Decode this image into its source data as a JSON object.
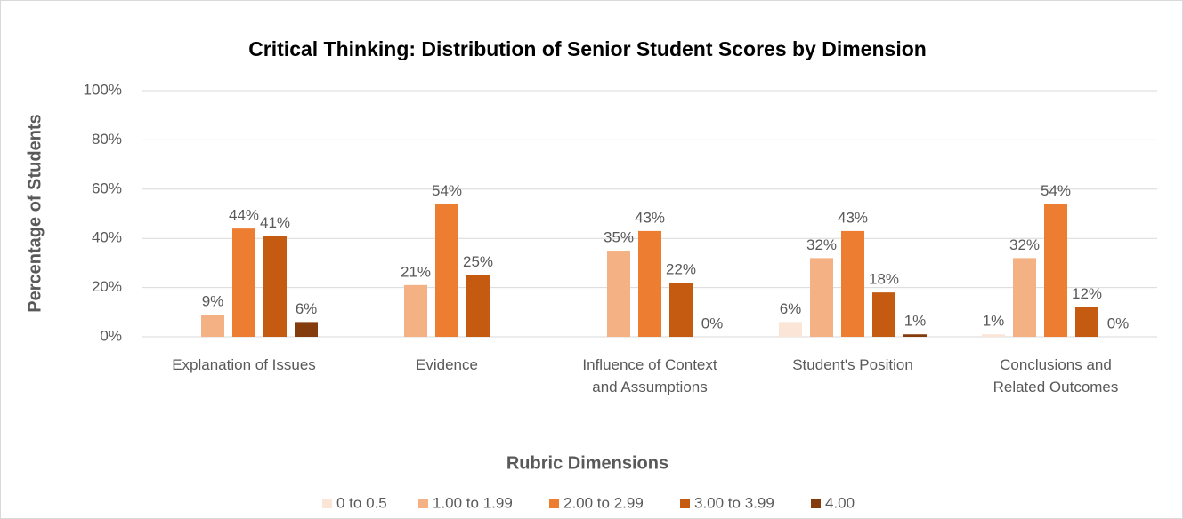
{
  "chart_data": {
    "type": "bar",
    "title": "Critical Thinking: Distribution of Senior Student Scores by Dimension",
    "x_label": "Rubric Dimensions",
    "y_label": "Percentage of Students",
    "categories": [
      "Explanation of Issues",
      "Evidence",
      "Influence of Context and Assumptions",
      "Student's Position",
      "Conclusions and Related Outcomes"
    ],
    "series": [
      {
        "name": "0 to 0.5",
        "color": "#fbe5d6",
        "values": [
          null,
          null,
          null,
          6,
          1
        ],
        "value_labels": [
          null,
          null,
          null,
          "6%",
          "1%"
        ]
      },
      {
        "name": "1.00 to 1.99",
        "color": "#f4b183",
        "values": [
          9,
          21,
          35,
          32,
          32
        ],
        "value_labels": [
          "9%",
          "21%",
          "35%",
          "32%",
          "32%"
        ]
      },
      {
        "name": "2.00 to 2.99",
        "color": "#ed7d31",
        "values": [
          44,
          54,
          43,
          43,
          54
        ],
        "value_labels": [
          "44%",
          "54%",
          "43%",
          "43%",
          "54%"
        ]
      },
      {
        "name": "3.00 to 3.99",
        "color": "#c55a11",
        "values": [
          41,
          25,
          22,
          18,
          12
        ],
        "value_labels": [
          "41%",
          "25%",
          "22%",
          "18%",
          "12%"
        ]
      },
      {
        "name": "4.00",
        "color": "#843c0c",
        "values": [
          6,
          null,
          0,
          1,
          0
        ],
        "value_labels": [
          "6%",
          null,
          "0%",
          "1%",
          "0%"
        ]
      }
    ],
    "ylim": [
      0,
      100
    ],
    "yticks": [
      {
        "value": 0,
        "label": "0%"
      },
      {
        "value": 20,
        "label": "20%"
      },
      {
        "value": 40,
        "label": "40%"
      },
      {
        "value": 60,
        "label": "60%"
      },
      {
        "value": 80,
        "label": "80%"
      },
      {
        "value": 100,
        "label": "100%"
      }
    ],
    "grid": true,
    "legend": "bottom"
  }
}
